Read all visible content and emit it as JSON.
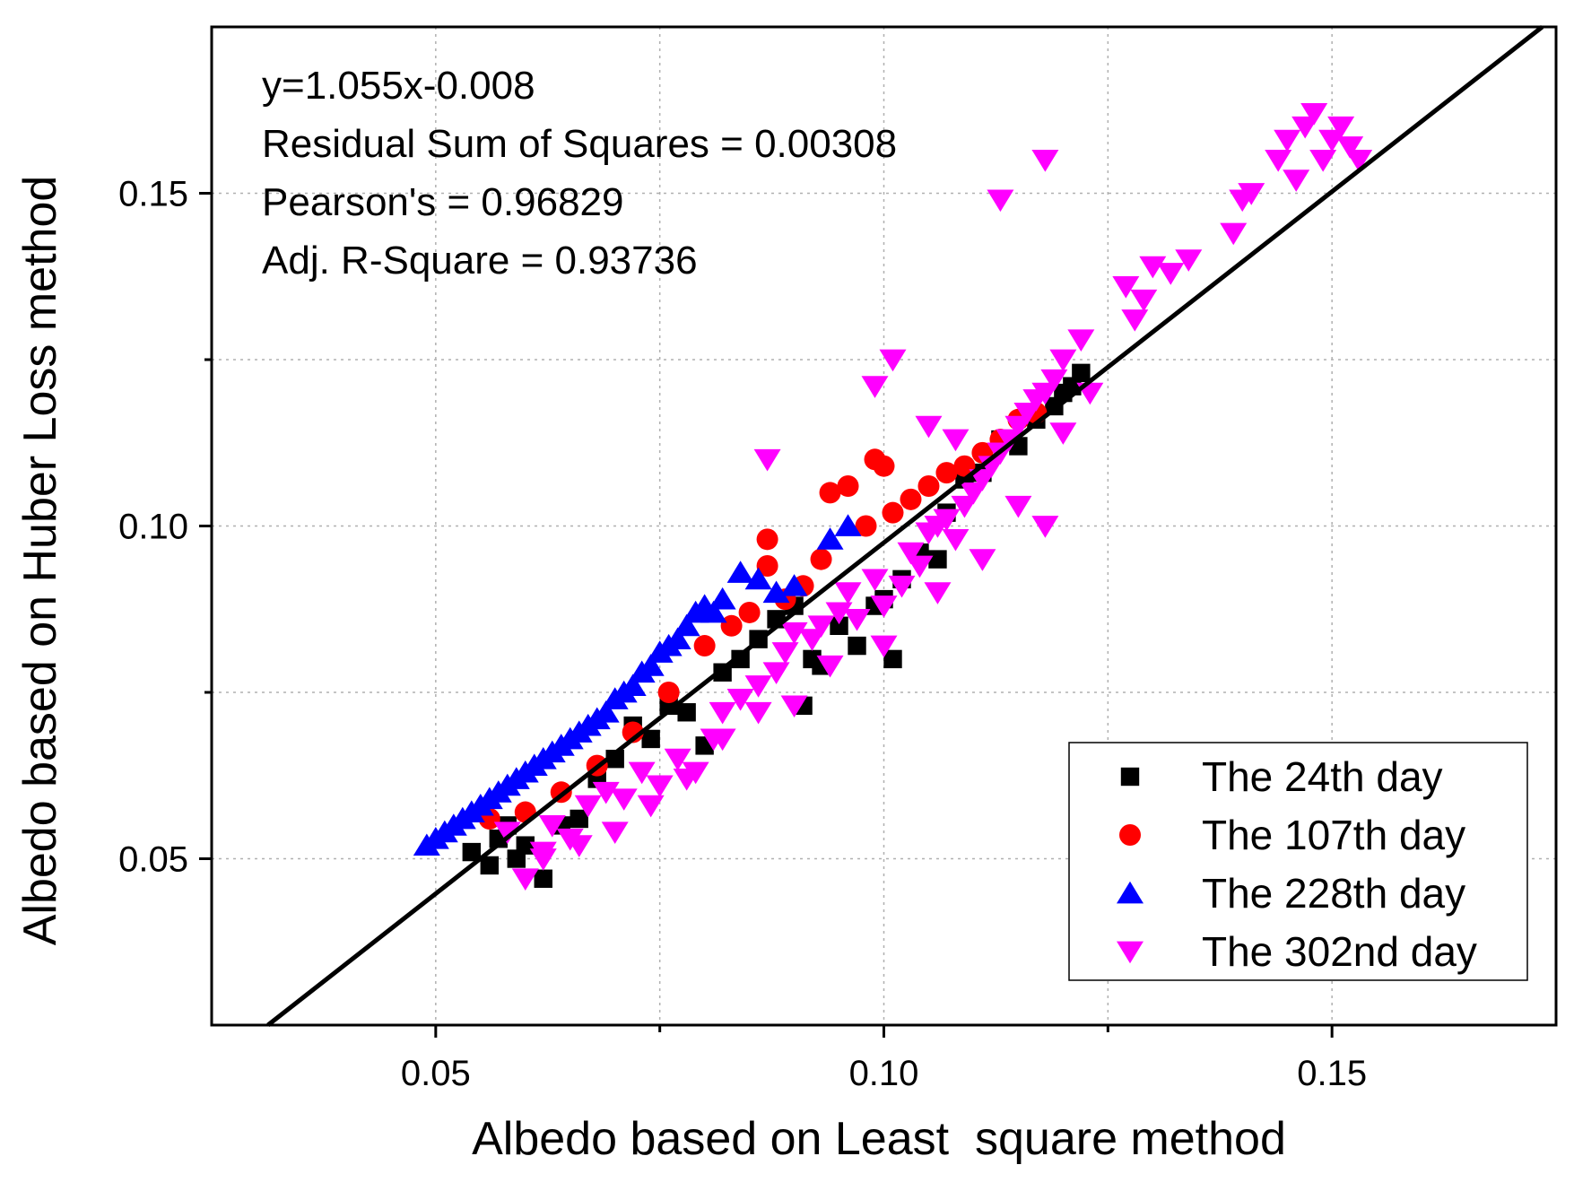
{
  "chart_data": {
    "type": "scatter",
    "title": "",
    "xlabel": "Albedo based on Least  square method",
    "ylabel": "Albedo based on Huber Loss method",
    "xlim": [
      0.025,
      0.175
    ],
    "ylim": [
      0.025,
      0.175
    ],
    "x_ticks": [
      0.05,
      0.1,
      0.15
    ],
    "x_tick_labels": [
      "0.05",
      "0.10",
      "0.15"
    ],
    "x_minor_ticks": [
      0.075,
      0.125
    ],
    "y_ticks": [
      0.05,
      0.1,
      0.15
    ],
    "y_tick_labels": [
      "0.05",
      "0.10",
      "0.15"
    ],
    "y_minor_ticks": [
      0.075,
      0.125
    ],
    "grid": true,
    "legend_position": "bottom-right",
    "fit_line": {
      "slope": 1.055,
      "intercept": -0.008
    },
    "annotations": [
      "y=1.055x-0.008",
      "Residual Sum of Squares = 0.00308",
      "Pearson's = 0.96829",
      "Adj. R-Square = 0.93736"
    ],
    "series": [
      {
        "name": "The 24th day",
        "marker": "square",
        "color": "#000000",
        "points": [
          [
            0.054,
            0.051
          ],
          [
            0.056,
            0.049
          ],
          [
            0.057,
            0.053
          ],
          [
            0.058,
            0.055
          ],
          [
            0.059,
            0.05
          ],
          [
            0.06,
            0.052
          ],
          [
            0.062,
            0.047
          ],
          [
            0.064,
            0.055
          ],
          [
            0.066,
            0.056
          ],
          [
            0.068,
            0.062
          ],
          [
            0.07,
            0.065
          ],
          [
            0.072,
            0.07
          ],
          [
            0.074,
            0.068
          ],
          [
            0.076,
            0.073
          ],
          [
            0.078,
            0.072
          ],
          [
            0.08,
            0.067
          ],
          [
            0.082,
            0.078
          ],
          [
            0.084,
            0.08
          ],
          [
            0.086,
            0.083
          ],
          [
            0.088,
            0.086
          ],
          [
            0.09,
            0.088
          ],
          [
            0.091,
            0.073
          ],
          [
            0.092,
            0.08
          ],
          [
            0.093,
            0.079
          ],
          [
            0.095,
            0.085
          ],
          [
            0.097,
            0.082
          ],
          [
            0.099,
            0.088
          ],
          [
            0.1,
            0.089
          ],
          [
            0.101,
            0.08
          ],
          [
            0.102,
            0.092
          ],
          [
            0.104,
            0.096
          ],
          [
            0.106,
            0.095
          ],
          [
            0.107,
            0.102
          ],
          [
            0.109,
            0.107
          ],
          [
            0.111,
            0.108
          ],
          [
            0.113,
            0.113
          ],
          [
            0.115,
            0.112
          ],
          [
            0.117,
            0.116
          ],
          [
            0.119,
            0.118
          ],
          [
            0.12,
            0.12
          ],
          [
            0.121,
            0.121
          ],
          [
            0.122,
            0.123
          ]
        ]
      },
      {
        "name": "The 107th day",
        "marker": "circle",
        "color": "#ff0000",
        "points": [
          [
            0.056,
            0.056
          ],
          [
            0.06,
            0.057
          ],
          [
            0.064,
            0.06
          ],
          [
            0.068,
            0.064
          ],
          [
            0.072,
            0.069
          ],
          [
            0.076,
            0.075
          ],
          [
            0.08,
            0.082
          ],
          [
            0.083,
            0.085
          ],
          [
            0.085,
            0.087
          ],
          [
            0.087,
            0.098
          ],
          [
            0.087,
            0.094
          ],
          [
            0.089,
            0.089
          ],
          [
            0.091,
            0.091
          ],
          [
            0.093,
            0.095
          ],
          [
            0.094,
            0.105
          ],
          [
            0.096,
            0.106
          ],
          [
            0.098,
            0.1
          ],
          [
            0.099,
            0.11
          ],
          [
            0.1,
            0.109
          ],
          [
            0.101,
            0.102
          ],
          [
            0.103,
            0.104
          ],
          [
            0.105,
            0.106
          ],
          [
            0.107,
            0.108
          ],
          [
            0.109,
            0.109
          ],
          [
            0.111,
            0.111
          ],
          [
            0.113,
            0.113
          ],
          [
            0.115,
            0.116
          ],
          [
            0.117,
            0.117
          ]
        ]
      },
      {
        "name": "The 228th day",
        "marker": "triangle-up",
        "color": "#0000ff",
        "points": [
          [
            0.049,
            0.052
          ],
          [
            0.05,
            0.053
          ],
          [
            0.051,
            0.054
          ],
          [
            0.052,
            0.055
          ],
          [
            0.053,
            0.056
          ],
          [
            0.054,
            0.057
          ],
          [
            0.055,
            0.058
          ],
          [
            0.056,
            0.059
          ],
          [
            0.057,
            0.06
          ],
          [
            0.058,
            0.061
          ],
          [
            0.059,
            0.062
          ],
          [
            0.06,
            0.063
          ],
          [
            0.061,
            0.064
          ],
          [
            0.062,
            0.065
          ],
          [
            0.063,
            0.066
          ],
          [
            0.064,
            0.067
          ],
          [
            0.065,
            0.068
          ],
          [
            0.066,
            0.069
          ],
          [
            0.067,
            0.07
          ],
          [
            0.068,
            0.071
          ],
          [
            0.069,
            0.072
          ],
          [
            0.07,
            0.074
          ],
          [
            0.071,
            0.075
          ],
          [
            0.072,
            0.076
          ],
          [
            0.073,
            0.078
          ],
          [
            0.074,
            0.079
          ],
          [
            0.075,
            0.081
          ],
          [
            0.076,
            0.082
          ],
          [
            0.077,
            0.083
          ],
          [
            0.078,
            0.085
          ],
          [
            0.079,
            0.087
          ],
          [
            0.08,
            0.088
          ],
          [
            0.081,
            0.087
          ],
          [
            0.082,
            0.089
          ],
          [
            0.084,
            0.093
          ],
          [
            0.086,
            0.092
          ],
          [
            0.088,
            0.09
          ],
          [
            0.09,
            0.091
          ],
          [
            0.094,
            0.098
          ],
          [
            0.096,
            0.1
          ]
        ]
      },
      {
        "name": "The 302nd day",
        "marker": "triangle-down",
        "color": "#ff00ff",
        "points": [
          [
            0.06,
            0.047
          ],
          [
            0.062,
            0.051
          ],
          [
            0.063,
            0.055
          ],
          [
            0.065,
            0.053
          ],
          [
            0.067,
            0.058
          ],
          [
            0.069,
            0.06
          ],
          [
            0.071,
            0.059
          ],
          [
            0.073,
            0.063
          ],
          [
            0.075,
            0.061
          ],
          [
            0.077,
            0.065
          ],
          [
            0.079,
            0.063
          ],
          [
            0.081,
            0.068
          ],
          [
            0.082,
            0.072
          ],
          [
            0.084,
            0.074
          ],
          [
            0.086,
            0.076
          ],
          [
            0.088,
            0.078
          ],
          [
            0.089,
            0.081
          ],
          [
            0.09,
            0.084
          ],
          [
            0.092,
            0.083
          ],
          [
            0.093,
            0.085
          ],
          [
            0.095,
            0.087
          ],
          [
            0.096,
            0.09
          ],
          [
            0.097,
            0.086
          ],
          [
            0.099,
            0.092
          ],
          [
            0.1,
            0.088
          ],
          [
            0.102,
            0.091
          ],
          [
            0.103,
            0.096
          ],
          [
            0.104,
            0.094
          ],
          [
            0.105,
            0.099
          ],
          [
            0.106,
            0.1
          ],
          [
            0.107,
            0.101
          ],
          [
            0.108,
            0.098
          ],
          [
            0.109,
            0.103
          ],
          [
            0.11,
            0.105
          ],
          [
            0.111,
            0.107
          ],
          [
            0.112,
            0.109
          ],
          [
            0.113,
            0.111
          ],
          [
            0.114,
            0.113
          ],
          [
            0.115,
            0.115
          ],
          [
            0.116,
            0.117
          ],
          [
            0.117,
            0.119
          ],
          [
            0.118,
            0.12
          ],
          [
            0.118,
            0.1
          ],
          [
            0.119,
            0.122
          ],
          [
            0.12,
            0.125
          ],
          [
            0.122,
            0.128
          ],
          [
            0.101,
            0.125
          ],
          [
            0.099,
            0.121
          ],
          [
            0.105,
            0.115
          ],
          [
            0.108,
            0.113
          ],
          [
            0.087,
            0.11
          ],
          [
            0.113,
            0.149
          ],
          [
            0.118,
            0.155
          ],
          [
            0.127,
            0.136
          ],
          [
            0.129,
            0.134
          ],
          [
            0.13,
            0.139
          ],
          [
            0.132,
            0.138
          ],
          [
            0.134,
            0.14
          ],
          [
            0.128,
            0.131
          ],
          [
            0.139,
            0.144
          ],
          [
            0.14,
            0.149
          ],
          [
            0.141,
            0.15
          ],
          [
            0.144,
            0.155
          ],
          [
            0.145,
            0.158
          ],
          [
            0.146,
            0.152
          ],
          [
            0.147,
            0.16
          ],
          [
            0.148,
            0.162
          ],
          [
            0.149,
            0.155
          ],
          [
            0.15,
            0.158
          ],
          [
            0.151,
            0.16
          ],
          [
            0.152,
            0.157
          ],
          [
            0.153,
            0.155
          ],
          [
            0.123,
            0.12
          ],
          [
            0.12,
            0.114
          ],
          [
            0.115,
            0.103
          ],
          [
            0.111,
            0.095
          ],
          [
            0.106,
            0.09
          ],
          [
            0.1,
            0.082
          ],
          [
            0.094,
            0.079
          ],
          [
            0.09,
            0.073
          ],
          [
            0.086,
            0.072
          ],
          [
            0.082,
            0.068
          ],
          [
            0.078,
            0.062
          ],
          [
            0.074,
            0.058
          ],
          [
            0.07,
            0.054
          ],
          [
            0.066,
            0.052
          ],
          [
            0.062,
            0.05
          ],
          [
            0.058,
            0.054
          ]
        ]
      }
    ]
  }
}
